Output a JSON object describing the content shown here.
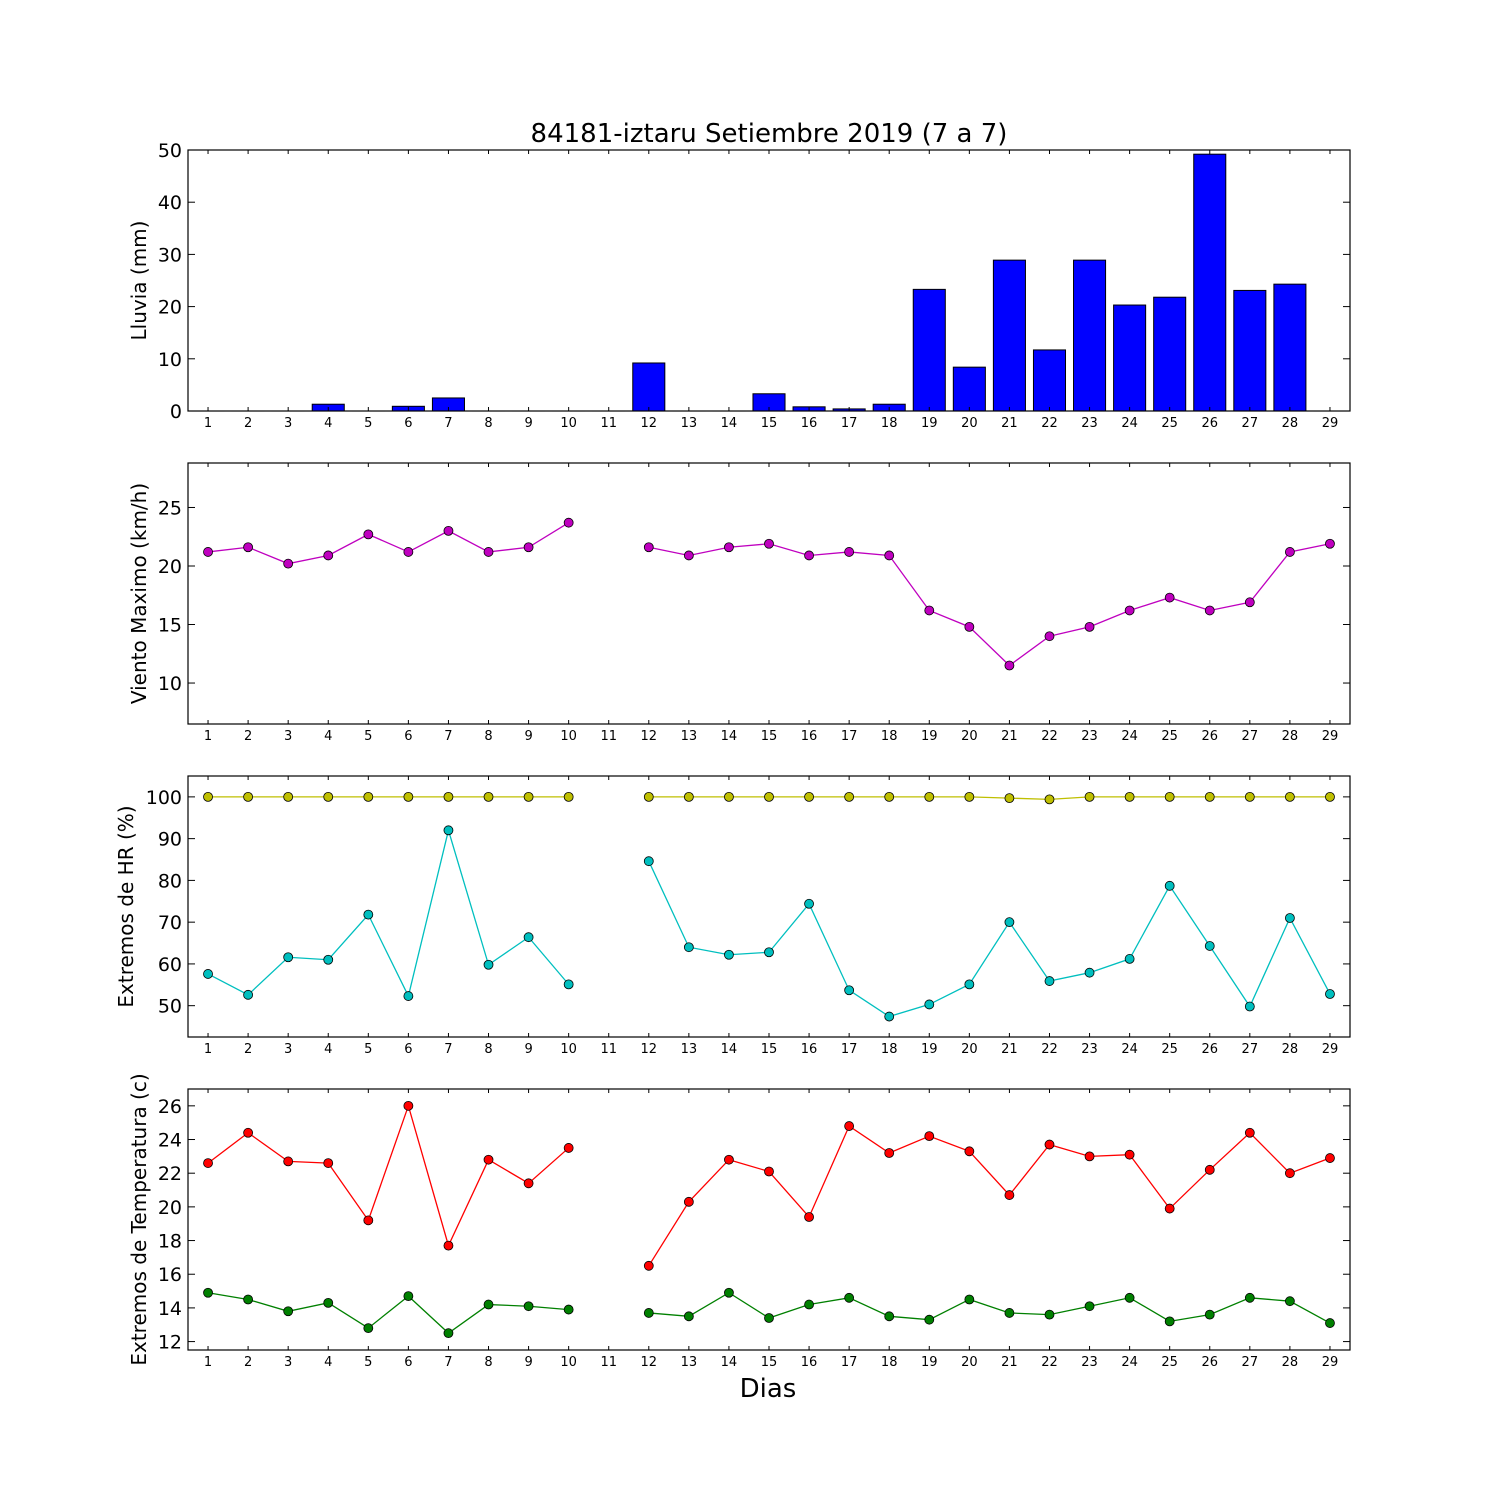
{
  "chart_data": [
    {
      "type": "bar",
      "title": "84181-iztaru Setiembre 2019  (7 a 7)",
      "ylabel": "Lluvia (mm)",
      "xlabel": "",
      "x": [
        1,
        2,
        3,
        4,
        5,
        6,
        7,
        8,
        9,
        10,
        11,
        12,
        13,
        14,
        15,
        16,
        17,
        18,
        19,
        20,
        21,
        22,
        23,
        24,
        25,
        26,
        27,
        28,
        29
      ],
      "x_ticks": [
        "1",
        "2",
        "3",
        "4",
        "5",
        "6",
        "7",
        "8",
        "9",
        "10",
        "11",
        "12",
        "13",
        "14",
        "15",
        "16",
        "17",
        "18",
        "19",
        "20",
        "21",
        "22",
        "23",
        "24",
        "25",
        "26",
        "27",
        "28",
        "29"
      ],
      "ylim": [
        0,
        50
      ],
      "y_ticks": [
        0,
        10,
        20,
        30,
        40,
        50
      ],
      "xlim": [
        0.5,
        29.5
      ],
      "grid": false,
      "series": [
        {
          "color": "#0000ff",
          "values": [
            0,
            0,
            0,
            1.3,
            0,
            0.9,
            2.5,
            0,
            0,
            0,
            0,
            9.2,
            0,
            0,
            3.3,
            0.8,
            0.4,
            1.3,
            23.3,
            8.4,
            28.9,
            11.7,
            28.9,
            20.3,
            21.8,
            49.2,
            23.1,
            24.3,
            0
          ]
        }
      ]
    },
    {
      "type": "line",
      "ylabel": "Viento Maximo (km/h)",
      "xlabel": "",
      "x": [
        1,
        2,
        3,
        4,
        5,
        6,
        7,
        8,
        9,
        10,
        11,
        12,
        13,
        14,
        15,
        16,
        17,
        18,
        19,
        20,
        21,
        22,
        23,
        24,
        25,
        26,
        27,
        28,
        29
      ],
      "x_ticks": [
        "1",
        "2",
        "3",
        "4",
        "5",
        "6",
        "7",
        "8",
        "9",
        "10",
        "11",
        "12",
        "13",
        "14",
        "15",
        "16",
        "17",
        "18",
        "19",
        "20",
        "21",
        "22",
        "23",
        "24",
        "25",
        "26",
        "27",
        "28",
        "29"
      ],
      "ylim": [
        6.5,
        28.8
      ],
      "y_ticks": [
        10,
        15,
        20,
        25
      ],
      "xlim": [
        0.5,
        29.5
      ],
      "grid": false,
      "series": [
        {
          "color": "#bf00bf",
          "values": [
            21.2,
            21.6,
            20.2,
            20.9,
            22.7,
            21.2,
            23.0,
            21.2,
            21.6,
            23.7,
            null,
            21.6,
            20.9,
            21.6,
            21.9,
            20.9,
            21.2,
            20.9,
            16.2,
            14.8,
            11.5,
            14.0,
            14.8,
            16.2,
            17.3,
            16.2,
            16.9,
            21.2,
            21.9
          ]
        }
      ]
    },
    {
      "type": "line",
      "ylabel": "Extremos de HR (%)",
      "xlabel": "",
      "x": [
        1,
        2,
        3,
        4,
        5,
        6,
        7,
        8,
        9,
        10,
        11,
        12,
        13,
        14,
        15,
        16,
        17,
        18,
        19,
        20,
        21,
        22,
        23,
        24,
        25,
        26,
        27,
        28,
        29
      ],
      "x_ticks": [
        "1",
        "2",
        "3",
        "4",
        "5",
        "6",
        "7",
        "8",
        "9",
        "10",
        "11",
        "12",
        "13",
        "14",
        "15",
        "16",
        "17",
        "18",
        "19",
        "20",
        "21",
        "22",
        "23",
        "24",
        "25",
        "26",
        "27",
        "28",
        "29"
      ],
      "ylim": [
        42.5,
        105
      ],
      "y_ticks": [
        50,
        60,
        70,
        80,
        90,
        100
      ],
      "xlim": [
        0.5,
        29.5
      ],
      "grid": false,
      "series": [
        {
          "color": "#bfbf00",
          "values": [
            100,
            100,
            100,
            100,
            100,
            100,
            100,
            100,
            100,
            100,
            null,
            100,
            100,
            100,
            100,
            100,
            100,
            100,
            100,
            100,
            99.7,
            99.4,
            100,
            100,
            100,
            100,
            100,
            100,
            100
          ]
        },
        {
          "color": "#00bfbf",
          "values": [
            57.6,
            52.6,
            61.6,
            61.0,
            71.8,
            52.3,
            92.0,
            59.8,
            66.4,
            55.1,
            null,
            84.6,
            64.0,
            62.2,
            62.8,
            74.4,
            53.7,
            47.4,
            50.3,
            55.1,
            70.0,
            55.9,
            57.9,
            61.2,
            78.7,
            64.3,
            49.8,
            71.0,
            52.8
          ]
        }
      ]
    },
    {
      "type": "line",
      "ylabel": "Extremos de Temperatura (c)",
      "xlabel": "Dias",
      "x": [
        1,
        2,
        3,
        4,
        5,
        6,
        7,
        8,
        9,
        10,
        11,
        12,
        13,
        14,
        15,
        16,
        17,
        18,
        19,
        20,
        21,
        22,
        23,
        24,
        25,
        26,
        27,
        28,
        29
      ],
      "x_ticks": [
        "1",
        "2",
        "3",
        "4",
        "5",
        "6",
        "7",
        "8",
        "9",
        "10",
        "11",
        "12",
        "13",
        "14",
        "15",
        "16",
        "17",
        "18",
        "19",
        "20",
        "21",
        "22",
        "23",
        "24",
        "25",
        "26",
        "27",
        "28",
        "29"
      ],
      "ylim": [
        11.5,
        27
      ],
      "y_ticks": [
        12,
        14,
        16,
        18,
        20,
        22,
        24,
        26
      ],
      "xlim": [
        0.5,
        29.5
      ],
      "grid": false,
      "series": [
        {
          "color": "#ff0000",
          "values": [
            22.6,
            24.4,
            22.7,
            22.6,
            19.2,
            26.0,
            17.7,
            22.8,
            21.4,
            23.5,
            null,
            16.5,
            20.3,
            22.8,
            22.1,
            19.4,
            24.8,
            23.2,
            24.2,
            23.3,
            20.7,
            23.7,
            23.0,
            23.1,
            19.9,
            22.2,
            24.4,
            22.0,
            22.9
          ]
        },
        {
          "color": "#008000",
          "values": [
            14.9,
            14.5,
            13.8,
            14.3,
            12.8,
            14.7,
            12.5,
            14.2,
            14.1,
            13.9,
            null,
            13.7,
            13.5,
            14.9,
            13.4,
            14.2,
            14.6,
            13.5,
            13.3,
            14.5,
            13.7,
            13.6,
            14.1,
            14.6,
            13.2,
            13.6,
            14.6,
            14.4,
            13.1
          ]
        }
      ]
    }
  ]
}
